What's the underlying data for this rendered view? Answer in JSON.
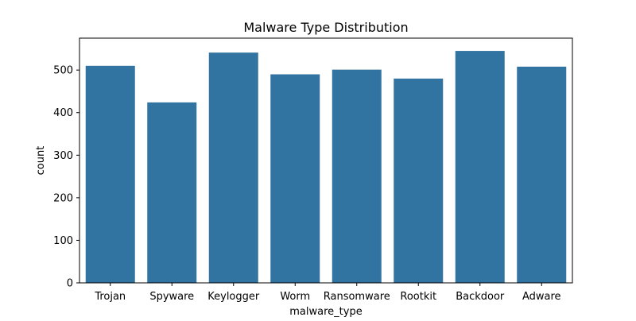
{
  "chart_data": {
    "type": "bar",
    "title": "Malware Type Distribution",
    "xlabel": "malware_type",
    "ylabel": "count",
    "categories": [
      "Trojan",
      "Spyware",
      "Keylogger",
      "Worm",
      "Ransomware",
      "Rootkit",
      "Backdoor",
      "Adware"
    ],
    "values": [
      510,
      424,
      541,
      490,
      501,
      480,
      545,
      508
    ],
    "ylim": [
      0,
      575
    ],
    "yticks": [
      0,
      100,
      200,
      300,
      400,
      500
    ],
    "bar_color": "#3274a1",
    "grid": false,
    "legend": "none"
  }
}
